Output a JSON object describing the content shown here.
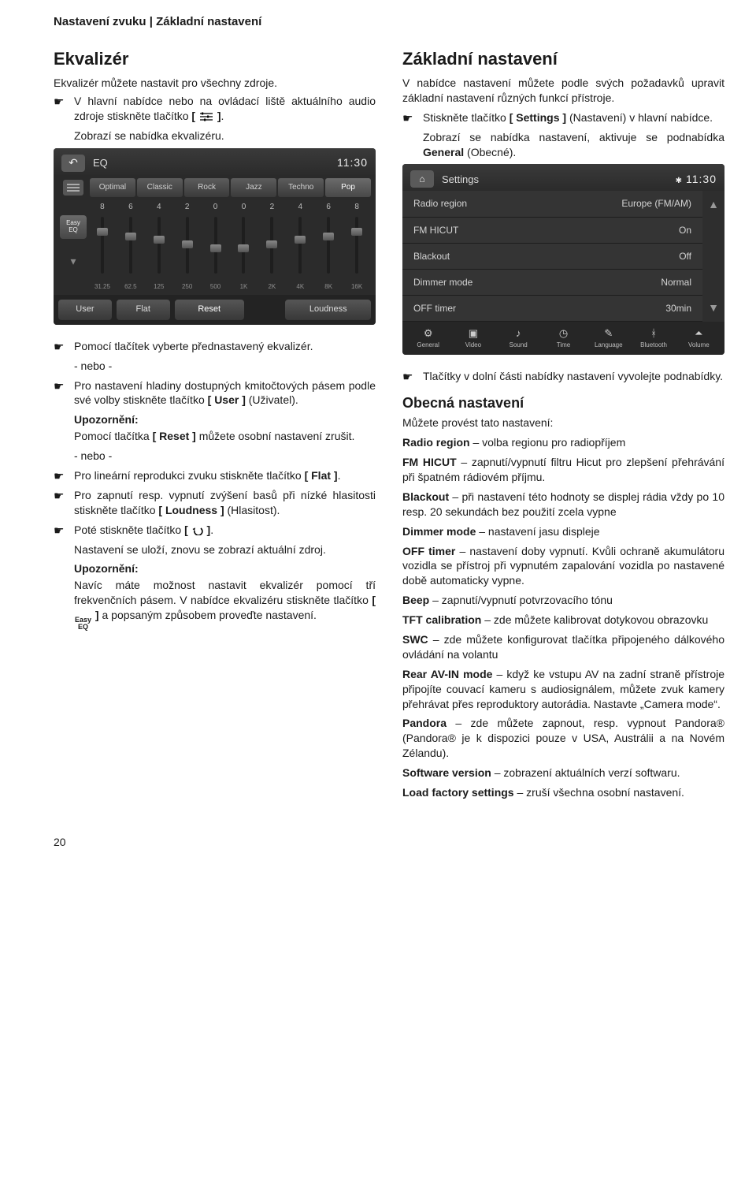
{
  "header": "Nastavení zvuku | Základní nastavení",
  "page_number": "20",
  "hand_glyph": "☛",
  "left": {
    "h_eq": "Ekvalizér",
    "eq_intro": "Ekvalizér můžete nastavit pro všechny zdroje.",
    "eq_step1_pre": "V hlavní nabídce nebo na ovládací liště aktuálního audio zdroje stiskněte tlačítko ",
    "eq_step1_post": ".",
    "eq_step1_after": "Zobrazí se nabídka ekvalizéru.",
    "eq_after_img_1": "Pomocí tlačítek vyberte přednastavený ekvalizér.",
    "or": "- nebo -",
    "eq_after_img_2_pre": "Pro nastavení hladiny dostupných kmitočtových pásem podle své volby stiskněte tlačítko ",
    "eq_after_img_2_btn": "[ User ]",
    "eq_after_img_2_post": " (Uživatel).",
    "notice_label": "Upozornění:",
    "notice_reset_pre": "Pomocí tlačítka ",
    "notice_reset_btn": "[ Reset ]",
    "notice_reset_post": " můžete osobní nastavení zrušit.",
    "eq_flat_pre": "Pro lineární reprodukci zvuku stiskněte tlačítko ",
    "eq_flat_btn": "[ Flat ]",
    "eq_flat_post": ".",
    "eq_loud_pre": "Pro zapnutí resp. vypnutí zvýšení basů při nízké hlasitosti stiskněte tlačítko ",
    "eq_loud_btn": "[ Loudness ]",
    "eq_loud_post": " (Hlasitost).",
    "eq_back_pre": "Poté stiskněte tlačítko ",
    "eq_back_post": ".",
    "eq_back_after": "Nastavení se uloží, znovu se zobrazí aktuální zdroj.",
    "notice2_a": "Navíc máte možnost nastavit ekvalizér pomocí tří frekvenčních pásem. V nabídce ekvalizéru stiskněte tlačítko ",
    "easy_label_top": "Easy",
    "easy_label_bot": "EQ",
    "notice2_b": " a popsaným způsobem proveďte nastavení."
  },
  "right": {
    "h_basic": "Základní nastavení",
    "basic_intro": "V nabídce nastavení můžete podle svých požadavků upravit základní nastavení různých funkcí přístroje.",
    "step_settings_pre": "Stiskněte tlačítko ",
    "step_settings_btn": "[ Settings ]",
    "step_settings_post": " (Nastavení) v hlavní nabídce.",
    "step_settings_after_a": "Zobrazí se nabídka nastavení, aktivuje se podnabídka ",
    "step_settings_after_b": "General",
    "step_settings_after_c": " (Obecné).",
    "tabs_note": "Tlačítky v dolní části nabídky nastavení vyvolejte podnabídky.",
    "h_general": "Obecná nastavení",
    "general_lead": "Můžete provést tato nastavení:",
    "defs": [
      {
        "k": "Radio region",
        "v": " – volba regionu pro radiopříjem"
      },
      {
        "k": "FM HICUT",
        "v": " – zapnutí/vypnutí filtru Hicut pro zlepšení přehrávání při špatném rádiovém příjmu."
      },
      {
        "k": "Blackout",
        "v": " – při nastavení této hodnoty se displej rádia vždy po 10 resp. 20 sekundách bez použití zcela vypne"
      },
      {
        "k": "Dimmer mode",
        "v": " – nastavení jasu displeje"
      },
      {
        "k": "OFF timer",
        "v": " – nastavení doby vypnutí. Kvůli ochraně akumulátoru vozidla se přístroj při vypnutém zapalování vozidla po nastavené době automaticky vypne."
      },
      {
        "k": "Beep",
        "v": " – zapnutí/vypnutí potvrzovacího tónu"
      },
      {
        "k": "TFT calibration",
        "v": " – zde můžete kalibrovat dotykovou obrazovku"
      },
      {
        "k": "SWC",
        "v": " – zde můžete konfigurovat tlačítka připojeného dálkového ovládání na volantu"
      },
      {
        "k": "Rear AV-IN mode",
        "v": " – když ke vstupu AV na zadní straně přístroje připojíte couvací kameru s audiosignálem, můžete zvuk kamery přehrávat přes reproduktory autorádia. Nastavte „Camera mode“."
      },
      {
        "k": "Pandora",
        "v": " – zde můžete zapnout, resp. vypnout Pandora® (Pandora® je k dispozici pouze v USA, Austrálii a na Novém Zélandu)."
      },
      {
        "k": "Software version",
        "v": " – zobrazení aktuálních verzí softwaru."
      },
      {
        "k": "Load factory settings",
        "v": " – zruší všechna osobní nastavení."
      }
    ]
  },
  "eq_shot": {
    "title": "EQ",
    "clock": "11:30",
    "presets": [
      "Optimal",
      "Classic",
      "Rock",
      "Jazz",
      "Techno",
      "Pop"
    ],
    "active_preset_index": 5,
    "band_values": [
      "8",
      "6",
      "4",
      "2",
      "0",
      "0",
      "2",
      "4",
      "6",
      "8"
    ],
    "knob_pos_pct": [
      20,
      28,
      34,
      42,
      48,
      48,
      42,
      34,
      28,
      20
    ],
    "freqs": [
      "31.25",
      "62.5",
      "125",
      "250",
      "500",
      "1K",
      "2K",
      "4K",
      "8K",
      "16K"
    ],
    "easy_top": "Easy",
    "easy_bot": "EQ",
    "bottom": {
      "user": "User",
      "flat": "Flat",
      "reset": "Reset",
      "loud": "Loudness"
    }
  },
  "set_shot": {
    "title": "Settings",
    "clock": "11:30",
    "bt_glyph": "✱",
    "rows": [
      {
        "label": "Radio region",
        "val": "Europe (FM/AM)"
      },
      {
        "label": "FM HICUT",
        "val": "On"
      },
      {
        "label": "Blackout",
        "val": "Off"
      },
      {
        "label": "Dimmer mode",
        "val": "Normal"
      },
      {
        "label": "OFF timer",
        "val": "30min"
      }
    ],
    "tabs": [
      {
        "icon": "⚙",
        "label": "General"
      },
      {
        "icon": "▣",
        "label": "Video"
      },
      {
        "icon": "♪",
        "label": "Sound"
      },
      {
        "icon": "◷",
        "label": "Time"
      },
      {
        "icon": "✎",
        "label": "Language"
      },
      {
        "icon": "ᚼ",
        "label": "Bluetooth"
      },
      {
        "icon": "⏶",
        "label": "Volume"
      }
    ]
  }
}
